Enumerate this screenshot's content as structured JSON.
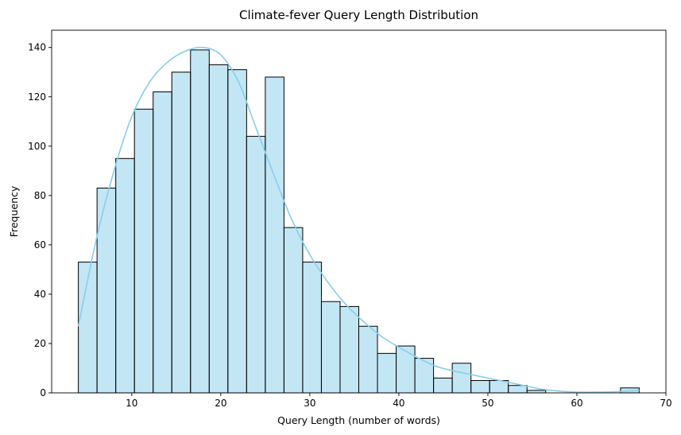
{
  "chart_data": {
    "type": "bar",
    "title": "Climate-fever Query Length Distribution",
    "xlabel": "Query Length (number of words)",
    "ylabel": "Frequency",
    "xlim": [
      1,
      70
    ],
    "ylim": [
      0,
      147
    ],
    "xticks": [
      10,
      20,
      30,
      40,
      50,
      60,
      70
    ],
    "yticks": [
      0,
      20,
      40,
      60,
      80,
      100,
      120,
      140
    ],
    "grid": false,
    "bar_color": "#87ceeb",
    "bar_fill_opacity": 0.5,
    "bar_edge_color": "#000000",
    "kde_color": "#87ceeb",
    "bins": [
      {
        "x0": 4.0,
        "x1": 6.1,
        "count": 53
      },
      {
        "x0": 6.1,
        "x1": 8.2,
        "count": 83
      },
      {
        "x0": 8.2,
        "x1": 10.3,
        "count": 95
      },
      {
        "x0": 10.3,
        "x1": 12.4,
        "count": 115
      },
      {
        "x0": 12.4,
        "x1": 14.5,
        "count": 122
      },
      {
        "x0": 14.5,
        "x1": 16.6,
        "count": 130
      },
      {
        "x0": 16.6,
        "x1": 18.7,
        "count": 139
      },
      {
        "x0": 18.7,
        "x1": 20.8,
        "count": 133
      },
      {
        "x0": 20.8,
        "x1": 22.9,
        "count": 131
      },
      {
        "x0": 22.9,
        "x1": 25.0,
        "count": 104
      },
      {
        "x0": 25.0,
        "x1": 27.1,
        "count": 128
      },
      {
        "x0": 27.1,
        "x1": 29.2,
        "count": 67
      },
      {
        "x0": 29.2,
        "x1": 31.3,
        "count": 53
      },
      {
        "x0": 31.3,
        "x1": 33.4,
        "count": 37
      },
      {
        "x0": 33.4,
        "x1": 35.5,
        "count": 35
      },
      {
        "x0": 35.5,
        "x1": 37.6,
        "count": 27
      },
      {
        "x0": 37.6,
        "x1": 39.7,
        "count": 16
      },
      {
        "x0": 39.7,
        "x1": 41.8,
        "count": 19
      },
      {
        "x0": 41.8,
        "x1": 43.9,
        "count": 14
      },
      {
        "x0": 43.9,
        "x1": 46.0,
        "count": 6
      },
      {
        "x0": 46.0,
        "x1": 48.1,
        "count": 12
      },
      {
        "x0": 48.1,
        "x1": 50.2,
        "count": 5
      },
      {
        "x0": 50.2,
        "x1": 52.3,
        "count": 5
      },
      {
        "x0": 52.3,
        "x1": 54.4,
        "count": 3
      },
      {
        "x0": 54.4,
        "x1": 56.5,
        "count": 1
      },
      {
        "x0": 56.5,
        "x1": 58.6,
        "count": 0
      },
      {
        "x0": 58.6,
        "x1": 60.7,
        "count": 0
      },
      {
        "x0": 60.7,
        "x1": 62.8,
        "count": 0
      },
      {
        "x0": 62.8,
        "x1": 64.9,
        "count": 0
      },
      {
        "x0": 64.9,
        "x1": 67.0,
        "count": 2
      }
    ],
    "kde": {
      "x": [
        4,
        6,
        8,
        10,
        12,
        14,
        16,
        18,
        20,
        22,
        24,
        26,
        28,
        30,
        32,
        34,
        36,
        38,
        40,
        42,
        44,
        46,
        48,
        50,
        52,
        54,
        56,
        58,
        60,
        62,
        64,
        66,
        67
      ],
      "y": [
        27,
        62,
        90,
        112,
        126,
        134,
        138.5,
        140,
        137,
        126,
        107,
        88,
        70,
        56,
        45,
        36,
        29,
        23,
        18.5,
        14.5,
        11,
        9,
        7.5,
        6,
        4.5,
        3,
        1.5,
        0.7,
        0.3,
        0.3,
        0.4,
        0.8,
        1
      ]
    }
  }
}
